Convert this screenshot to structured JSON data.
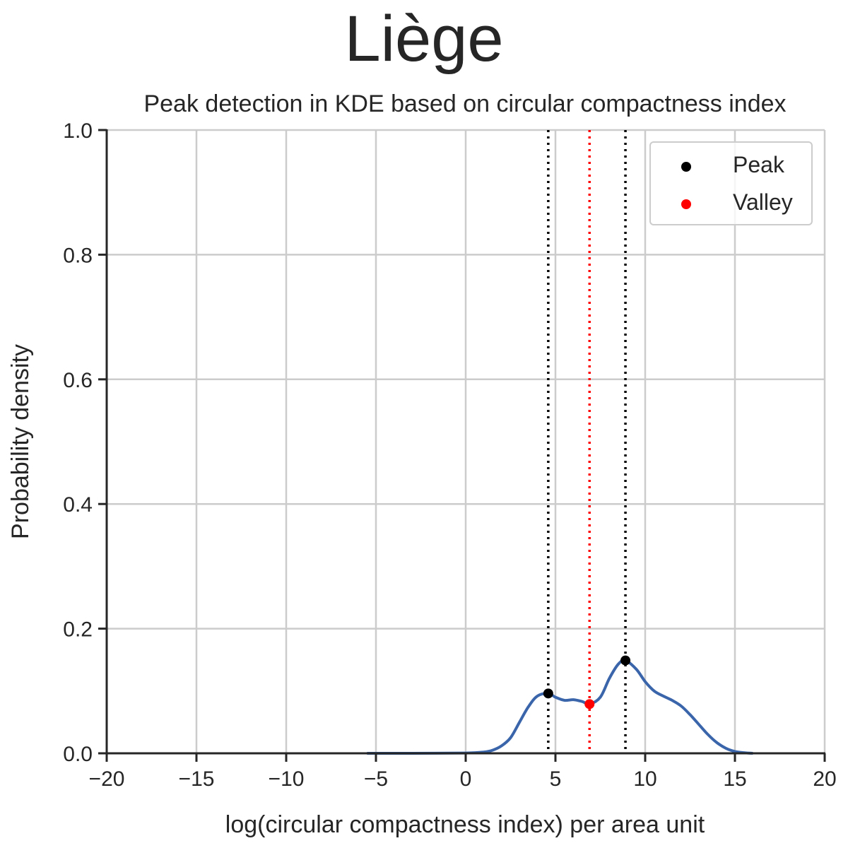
{
  "figure": {
    "suptitle": "Liège",
    "title": "Peak detection in KDE based on circular compactness index"
  },
  "chart_data": {
    "type": "line",
    "title": "Peak detection in KDE based on circular compactness index",
    "xlabel": "log(circular compactness index) per area unit",
    "ylabel": "Probability density",
    "xlim": [
      -20,
      20
    ],
    "ylim": [
      0,
      1.0
    ],
    "grid": true,
    "legend_position": "top-right",
    "x_ticks": [
      -20,
      -15,
      -10,
      -5,
      0,
      5,
      10,
      15,
      20
    ],
    "x_tick_labels": [
      "−20",
      "−15",
      "−10",
      "−5",
      "0",
      "5",
      "10",
      "15",
      "20"
    ],
    "y_ticks": [
      0.0,
      0.2,
      0.4,
      0.6,
      0.8,
      1.0
    ],
    "y_tick_labels": [
      "0.0",
      "0.2",
      "0.4",
      "0.6",
      "0.8",
      "1.0"
    ],
    "kde": {
      "name": "KDE",
      "color": "#3a65ab",
      "x": [
        -5.5,
        -3,
        0,
        1,
        1.5,
        2,
        2.5,
        3,
        3.5,
        4,
        4.6,
        5,
        5.5,
        6,
        6.5,
        6.9,
        7.5,
        8,
        8.5,
        8.9,
        9.5,
        10,
        10.5,
        11,
        11.5,
        12,
        12.5,
        13,
        13.5,
        14,
        14.5,
        15,
        15.5,
        16
      ],
      "y": [
        0.0,
        0.0,
        0.0005,
        0.002,
        0.005,
        0.012,
        0.025,
        0.05,
        0.075,
        0.092,
        0.096,
        0.09,
        0.085,
        0.086,
        0.083,
        0.079,
        0.09,
        0.12,
        0.143,
        0.149,
        0.135,
        0.115,
        0.1,
        0.092,
        0.085,
        0.076,
        0.062,
        0.046,
        0.03,
        0.017,
        0.008,
        0.003,
        0.001,
        0.0
      ]
    },
    "peaks": {
      "name": "Peak",
      "color": "#000000",
      "x": [
        4.6,
        8.9
      ],
      "y": [
        0.096,
        0.149
      ]
    },
    "valleys": {
      "name": "Valley",
      "color": "#ff0000",
      "x": [
        6.9
      ],
      "y": [
        0.079
      ]
    },
    "legend": [
      {
        "label": "Peak",
        "color": "#000000"
      },
      {
        "label": "Valley",
        "color": "#ff0000"
      }
    ]
  }
}
